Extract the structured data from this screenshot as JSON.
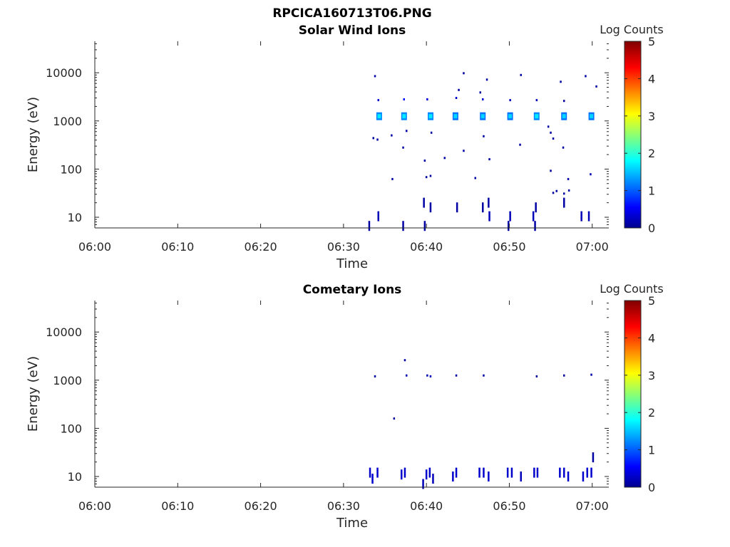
{
  "figure_title": "RPCICA160713T06.PNG",
  "colorbar": {
    "label": "Log Counts",
    "ticks": [
      "0",
      "1",
      "2",
      "3",
      "4",
      "5"
    ],
    "range": [
      0,
      5
    ]
  },
  "chart_data": [
    {
      "type": "heatmap",
      "title": "Solar Wind Ions",
      "xlabel": "Time",
      "ylabel": "Energy (eV)",
      "yscale": "log",
      "xlim": [
        "06:00",
        "07:02"
      ],
      "ylim": [
        6,
        45000
      ],
      "x_ticks": [
        "06:00",
        "06:10",
        "06:20",
        "06:30",
        "06:40",
        "06:50",
        "07:00"
      ],
      "y_ticks": [
        "10",
        "100",
        "1000",
        "10000"
      ],
      "cells": [
        {
          "t": "06:34.3",
          "e": 1250,
          "v": 1.2
        },
        {
          "t": "06:37.3",
          "e": 1250,
          "v": 1.2
        },
        {
          "t": "06:40.5",
          "e": 1250,
          "v": 1.2
        },
        {
          "t": "06:43.5",
          "e": 1250,
          "v": 1.1
        },
        {
          "t": "06:46.8",
          "e": 1250,
          "v": 1.1
        },
        {
          "t": "06:50.1",
          "e": 1250,
          "v": 1.1
        },
        {
          "t": "06:53.3",
          "e": 1250,
          "v": 1.2
        },
        {
          "t": "06:56.6",
          "e": 1250,
          "v": 1.1
        },
        {
          "t": "06:59.9",
          "e": 1250,
          "v": 1.1
        },
        {
          "t": "06:34.2",
          "e": 2700,
          "v": 0.3
        },
        {
          "t": "06:37.3",
          "e": 2800,
          "v": 0.6
        },
        {
          "t": "06:40.1",
          "e": 2800,
          "v": 0.4
        },
        {
          "t": "06:43.6",
          "e": 3000,
          "v": 0.3
        },
        {
          "t": "06:46.8",
          "e": 2800,
          "v": 0.3
        },
        {
          "t": "06:50.1",
          "e": 2700,
          "v": 0.2
        },
        {
          "t": "06:53.3",
          "e": 2700,
          "v": 0.2
        },
        {
          "t": "06:56.6",
          "e": 2600,
          "v": 0.1
        },
        {
          "t": "06:33.8",
          "e": 8500,
          "v": 0.1
        },
        {
          "t": "06:44.5",
          "e": 9800,
          "v": 0.1
        },
        {
          "t": "06:47.3",
          "e": 7200,
          "v": 0.1
        },
        {
          "t": "06:51.4",
          "e": 9000,
          "v": 0.1
        },
        {
          "t": "06:56.2",
          "e": 6500,
          "v": 0.1
        },
        {
          "t": "06:59.2",
          "e": 8500,
          "v": 0.1
        },
        {
          "t": "07:00.5",
          "e": 5200,
          "v": 0.1
        },
        {
          "t": "06:43.9",
          "e": 4400,
          "v": 0.1
        },
        {
          "t": "06:46.5",
          "e": 3900,
          "v": 0.1
        },
        {
          "t": "06:33.6",
          "e": 440,
          "v": 0.1
        },
        {
          "t": "06:34.1",
          "e": 410,
          "v": 0.1
        },
        {
          "t": "06:35.8",
          "e": 500,
          "v": 0.1
        },
        {
          "t": "06:37.6",
          "e": 620,
          "v": 0.1
        },
        {
          "t": "06:37.2",
          "e": 280,
          "v": 0.1
        },
        {
          "t": "06:40.6",
          "e": 570,
          "v": 0.1
        },
        {
          "t": "06:44.5",
          "e": 240,
          "v": 0.1
        },
        {
          "t": "06:46.9",
          "e": 480,
          "v": 0.1
        },
        {
          "t": "06:51.3",
          "e": 320,
          "v": 0.1
        },
        {
          "t": "06:54.7",
          "e": 760,
          "v": 0.1
        },
        {
          "t": "06:55.3",
          "e": 430,
          "v": 0.1
        },
        {
          "t": "06:55.0",
          "e": 570,
          "v": 0.1
        },
        {
          "t": "06:56.5",
          "e": 280,
          "v": 0.1
        },
        {
          "t": "06:39.8",
          "e": 150,
          "v": 0.1
        },
        {
          "t": "06:42.2",
          "e": 170,
          "v": 0.1
        },
        {
          "t": "06:47.6",
          "e": 160,
          "v": 0.1
        },
        {
          "t": "06:35.9",
          "e": 62,
          "v": 0.1
        },
        {
          "t": "06:40.0",
          "e": 68,
          "v": 0.1
        },
        {
          "t": "06:40.5",
          "e": 72,
          "v": 0.1
        },
        {
          "t": "06:45.9",
          "e": 65,
          "v": 0.1
        },
        {
          "t": "06:55.0",
          "e": 92,
          "v": 0.1
        },
        {
          "t": "06:57.1",
          "e": 62,
          "v": 0.1
        },
        {
          "t": "06:59.8",
          "e": 78,
          "v": 0.2
        },
        {
          "t": "06:55.3",
          "e": 32,
          "v": 0.1
        },
        {
          "t": "06:55.7",
          "e": 35,
          "v": 0.1
        },
        {
          "t": "06:56.6",
          "e": 31,
          "v": 0.1
        },
        {
          "t": "06:57.2",
          "e": 36,
          "v": 0.1
        },
        {
          "t": "06:39.7",
          "e": 20,
          "v": 0.1
        },
        {
          "t": "06:40.5",
          "e": 16,
          "v": 0.1
        },
        {
          "t": "06:43.7",
          "e": 16,
          "v": 0.1
        },
        {
          "t": "06:46.8",
          "e": 16,
          "v": 0.1
        },
        {
          "t": "06:47.5",
          "e": 20,
          "v": 0.1
        },
        {
          "t": "06:53.2",
          "e": 16,
          "v": 0.1
        },
        {
          "t": "06:56.6",
          "e": 20,
          "v": 0.1
        },
        {
          "t": "06:34.2",
          "e": 10.5,
          "v": 0.2
        },
        {
          "t": "06:47.6",
          "e": 10.5,
          "v": 0.2
        },
        {
          "t": "06:50.1",
          "e": 10.5,
          "v": 0.2
        },
        {
          "t": "06:52.9",
          "e": 10.5,
          "v": 0.2
        },
        {
          "t": "06:58.7",
          "e": 10.5,
          "v": 0.2
        },
        {
          "t": "06:59.6",
          "e": 10.5,
          "v": 0.2
        },
        {
          "t": "06:33.1",
          "e": 6.6,
          "v": 0.1
        },
        {
          "t": "06:37.2",
          "e": 6.6,
          "v": 0.1
        },
        {
          "t": "06:39.8",
          "e": 6.6,
          "v": 0.1
        },
        {
          "t": "06:49.9",
          "e": 6.6,
          "v": 0.1
        },
        {
          "t": "06:53.1",
          "e": 6.6,
          "v": 0.1
        }
      ]
    },
    {
      "type": "heatmap",
      "title": "Cometary Ions",
      "xlabel": "Time",
      "ylabel": "Energy (eV)",
      "yscale": "log",
      "xlim": [
        "06:00",
        "07:02"
      ],
      "ylim": [
        6,
        45000
      ],
      "x_ticks": [
        "06:00",
        "06:10",
        "06:20",
        "06:30",
        "06:40",
        "06:50",
        "07:00"
      ],
      "y_ticks": [
        "10",
        "100",
        "1000",
        "10000"
      ],
      "cells": [
        {
          "t": "06:33.8",
          "e": 1200,
          "v": 0.1
        },
        {
          "t": "06:37.4",
          "e": 2600,
          "v": 0.1
        },
        {
          "t": "06:37.6",
          "e": 1250,
          "v": 0.2
        },
        {
          "t": "06:40.1",
          "e": 1250,
          "v": 0.2
        },
        {
          "t": "06:40.5",
          "e": 1200,
          "v": 0.2
        },
        {
          "t": "06:43.6",
          "e": 1250,
          "v": 0.1
        },
        {
          "t": "06:46.9",
          "e": 1250,
          "v": 0.1
        },
        {
          "t": "06:53.3",
          "e": 1200,
          "v": 0.1
        },
        {
          "t": "06:56.6",
          "e": 1250,
          "v": 0.1
        },
        {
          "t": "06:59.9",
          "e": 1300,
          "v": 0.1
        },
        {
          "t": "06:36.1",
          "e": 160,
          "v": 0.1
        },
        {
          "t": "06:33.2",
          "e": 12,
          "v": 0.3
        },
        {
          "t": "06:33.5",
          "e": 9,
          "v": 0.3
        },
        {
          "t": "06:34.1",
          "e": 12,
          "v": 0.3
        },
        {
          "t": "06:37.0",
          "e": 11,
          "v": 0.3
        },
        {
          "t": "06:37.4",
          "e": 12,
          "v": 0.3
        },
        {
          "t": "06:39.6",
          "e": 7,
          "v": 0.2
        },
        {
          "t": "06:40.0",
          "e": 11,
          "v": 0.3
        },
        {
          "t": "06:40.4",
          "e": 12,
          "v": 0.3
        },
        {
          "t": "06:40.8",
          "e": 9,
          "v": 0.2
        },
        {
          "t": "06:43.2",
          "e": 10,
          "v": 0.3
        },
        {
          "t": "06:43.6",
          "e": 12,
          "v": 0.3
        },
        {
          "t": "06:46.4",
          "e": 12,
          "v": 0.3
        },
        {
          "t": "06:46.9",
          "e": 12,
          "v": 0.3
        },
        {
          "t": "06:47.5",
          "e": 10,
          "v": 0.3
        },
        {
          "t": "06:49.8",
          "e": 12,
          "v": 0.3
        },
        {
          "t": "06:50.3",
          "e": 12,
          "v": 0.3
        },
        {
          "t": "06:51.4",
          "e": 10,
          "v": 0.2
        },
        {
          "t": "06:53.0",
          "e": 12,
          "v": 0.3
        },
        {
          "t": "06:53.4",
          "e": 12,
          "v": 0.3
        },
        {
          "t": "06:56.1",
          "e": 12,
          "v": 0.3
        },
        {
          "t": "06:56.6",
          "e": 12,
          "v": 0.3
        },
        {
          "t": "06:57.1",
          "e": 10,
          "v": 0.3
        },
        {
          "t": "06:58.9",
          "e": 10,
          "v": 0.3
        },
        {
          "t": "06:59.4",
          "e": 12,
          "v": 0.3
        },
        {
          "t": "06:59.9",
          "e": 12,
          "v": 0.3
        },
        {
          "t": "07:00.1",
          "e": 25,
          "v": 0.1
        }
      ]
    }
  ]
}
